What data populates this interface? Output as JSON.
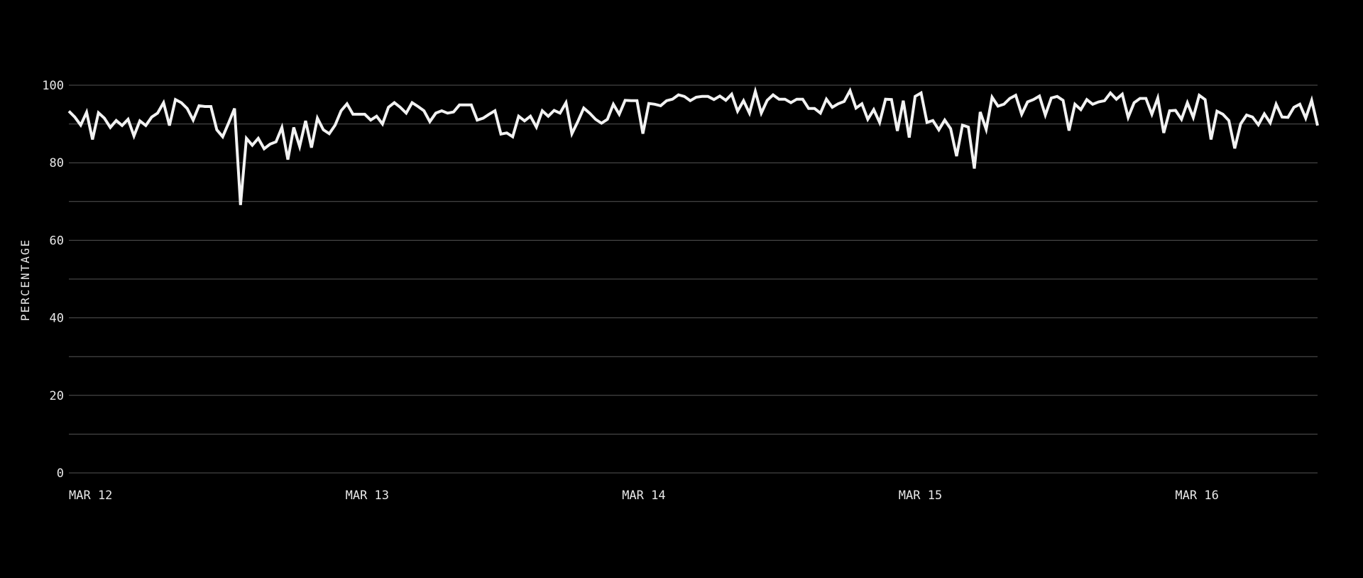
{
  "chart_data": {
    "type": "line",
    "title": "",
    "xlabel": "",
    "ylabel": "PERCENTAGE",
    "ylim": [
      0,
      100
    ],
    "yticks": [
      0,
      20,
      40,
      60,
      80,
      100
    ],
    "ygrid_step": 10,
    "grid": true,
    "xticks": [
      "MAR 12",
      "MAR 13",
      "MAR 14",
      "MAR 15",
      "MAR 16"
    ],
    "x_start": "MAR 12",
    "x_interval": "30 min",
    "colors": {
      "background": "#000000",
      "line": "#f2f2f2",
      "grid": "#555555",
      "text": "#e8e8e8"
    },
    "series": [
      {
        "values": [
          93.3,
          91.8,
          89.7,
          93,
          86,
          92.9,
          91.5,
          89.1,
          90.9,
          89.6,
          91.2,
          86.9,
          90.8,
          89.6,
          91.8,
          92.8,
          95.5,
          89.6,
          96.3,
          95.5,
          94,
          91,
          94.7,
          94.5,
          94.5,
          88.5,
          86.7,
          90.3,
          94,
          69.1,
          86.3,
          84.5,
          86.3,
          83.6,
          84.8,
          85.4,
          89.1,
          80.8,
          89.1,
          84.2,
          90.8,
          83.9,
          91.5,
          88.5,
          87.5,
          89.7,
          93.4,
          95.2,
          92.5,
          92.5,
          92.5,
          91,
          92,
          90,
          94.3,
          95.5,
          94.3,
          92.8,
          95.5,
          94.5,
          93.4,
          90.6,
          92.8,
          93.4,
          92.8,
          93.1,
          94.9,
          94.9,
          94.9,
          91,
          91.5,
          92.5,
          93.4,
          87.4,
          87.7,
          86.7,
          92,
          90.8,
          92,
          89.2,
          93.4,
          92,
          93.5,
          92.8,
          95.5,
          87.5,
          90.6,
          94.1,
          92.8,
          91.2,
          90.2,
          91.2,
          95.1,
          92.5,
          96.1,
          96,
          96,
          87.5,
          95.3,
          95.1,
          94.7,
          96,
          96.4,
          97.5,
          97.1,
          96,
          96.9,
          97.1,
          97.1,
          96.3,
          97.2,
          96.1,
          97.7,
          93.3,
          96,
          92.8,
          98.4,
          92.8,
          96.1,
          97.5,
          96.4,
          96.4,
          95.5,
          96.4,
          96.4,
          94,
          94,
          92.8,
          96.4,
          94.3,
          95.2,
          95.8,
          98.6,
          94.1,
          95.2,
          91.2,
          93.7,
          90.4,
          96.4,
          96.3,
          88.2,
          96,
          86.5,
          97.1,
          98,
          90.4,
          90.9,
          88.5,
          91,
          88.8,
          81.7,
          89.7,
          89.2,
          78.5,
          93.1,
          88.6,
          96.9,
          94.6,
          95.1,
          96.6,
          97.4,
          92.5,
          95.7,
          96.3,
          97.2,
          92.3,
          96.7,
          97.1,
          96.1,
          88.3,
          95.1,
          93.7,
          96.3,
          95.1,
          95.7,
          96,
          98,
          96.4,
          97.7,
          91.7,
          95.5,
          96.6,
          96.6,
          92.5,
          96.7,
          87.7,
          93.4,
          93.5,
          91.2,
          95.5,
          91.7,
          97.4,
          96.3,
          86,
          93.3,
          92.5,
          90.9,
          83.7,
          90,
          92.3,
          91.8,
          89.8,
          92.6,
          90.3,
          95.1,
          91.8,
          91.7,
          94.3,
          95.1,
          91.5,
          96.1,
          89.6
        ]
      }
    ]
  }
}
